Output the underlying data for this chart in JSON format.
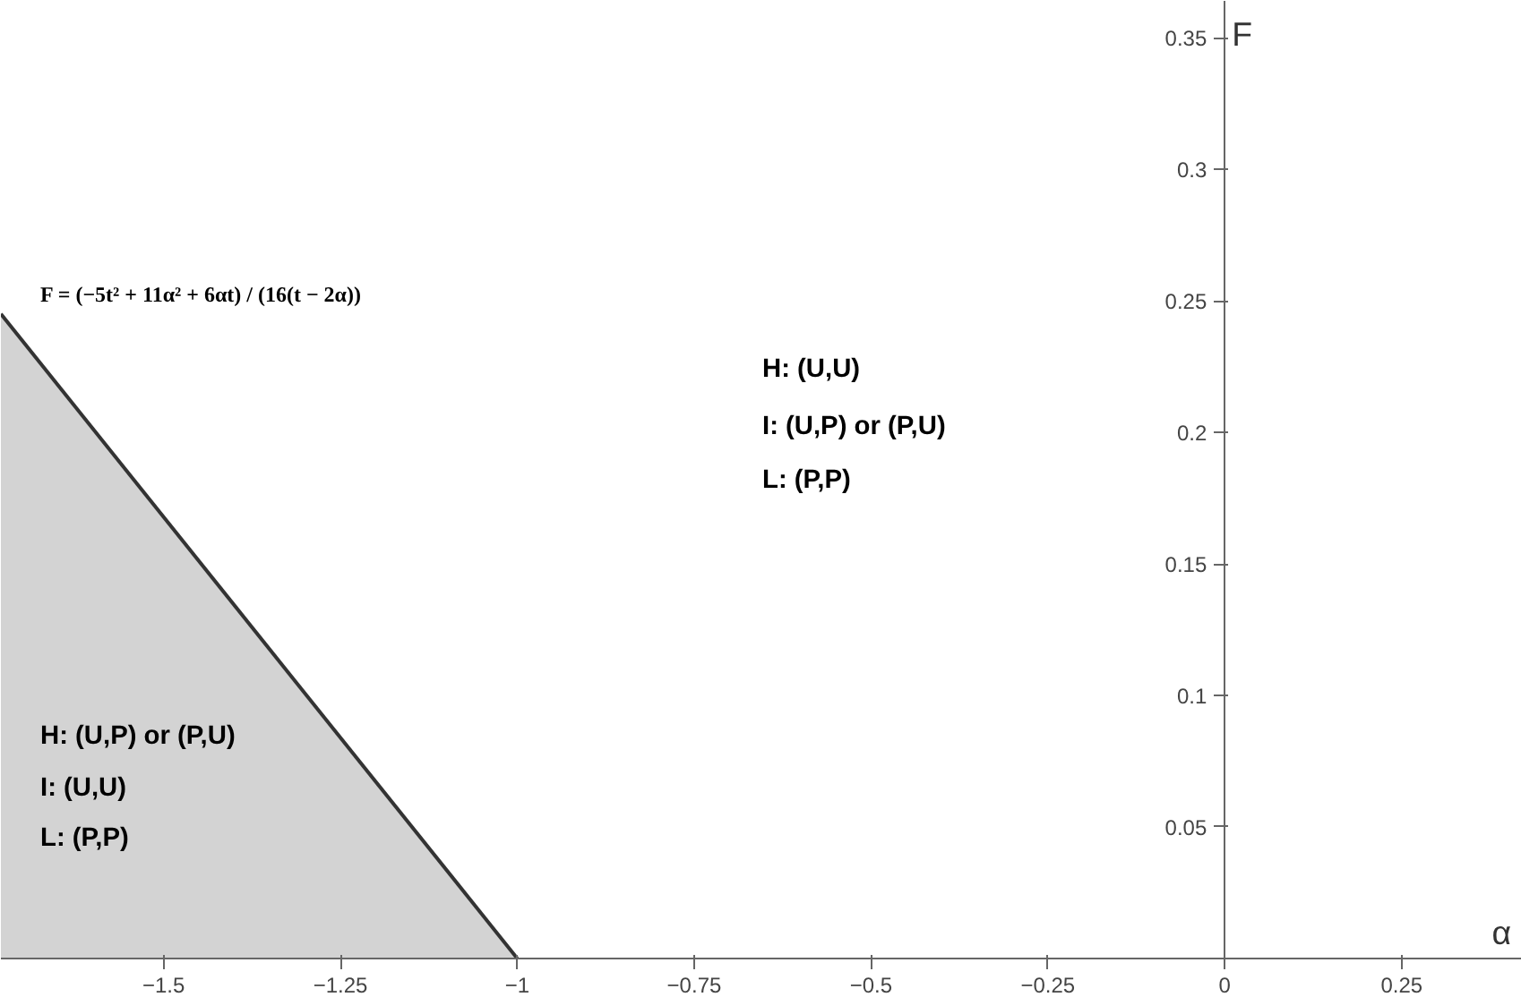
{
  "chart_data": {
    "type": "area",
    "x": [
      -1.73,
      -1
    ],
    "values": [
      0.245,
      0
    ],
    "color": "#d3d3d3",
    "xlabel": "α",
    "ylabel": "F",
    "xlim": [
      -1.73,
      0.42
    ],
    "ylim": [
      -0.015,
      0.364
    ],
    "xticks": [
      {
        "value": -1.5,
        "label": "−1.5"
      },
      {
        "value": -1.25,
        "label": "−1.25"
      },
      {
        "value": -1,
        "label": "−1"
      },
      {
        "value": -0.75,
        "label": "−0.75"
      },
      {
        "value": -0.5,
        "label": "−0.5"
      },
      {
        "value": -0.25,
        "label": "−0.25"
      },
      0,
      0.25
    ],
    "yticks": [
      0.05,
      0.1,
      0.15,
      0.2,
      0.25,
      0.3,
      0.35
    ],
    "grid": false,
    "annotations": [
      "F = (−5t² + 11α² + 6αt) / (16(t − 2α))",
      "H: (U,U)",
      "I: (U,P) or (P,U)",
      "L: (P,P)",
      "H: (U,P) or (P,U)",
      "I: (U,U)",
      "L: (P,P)"
    ]
  }
}
